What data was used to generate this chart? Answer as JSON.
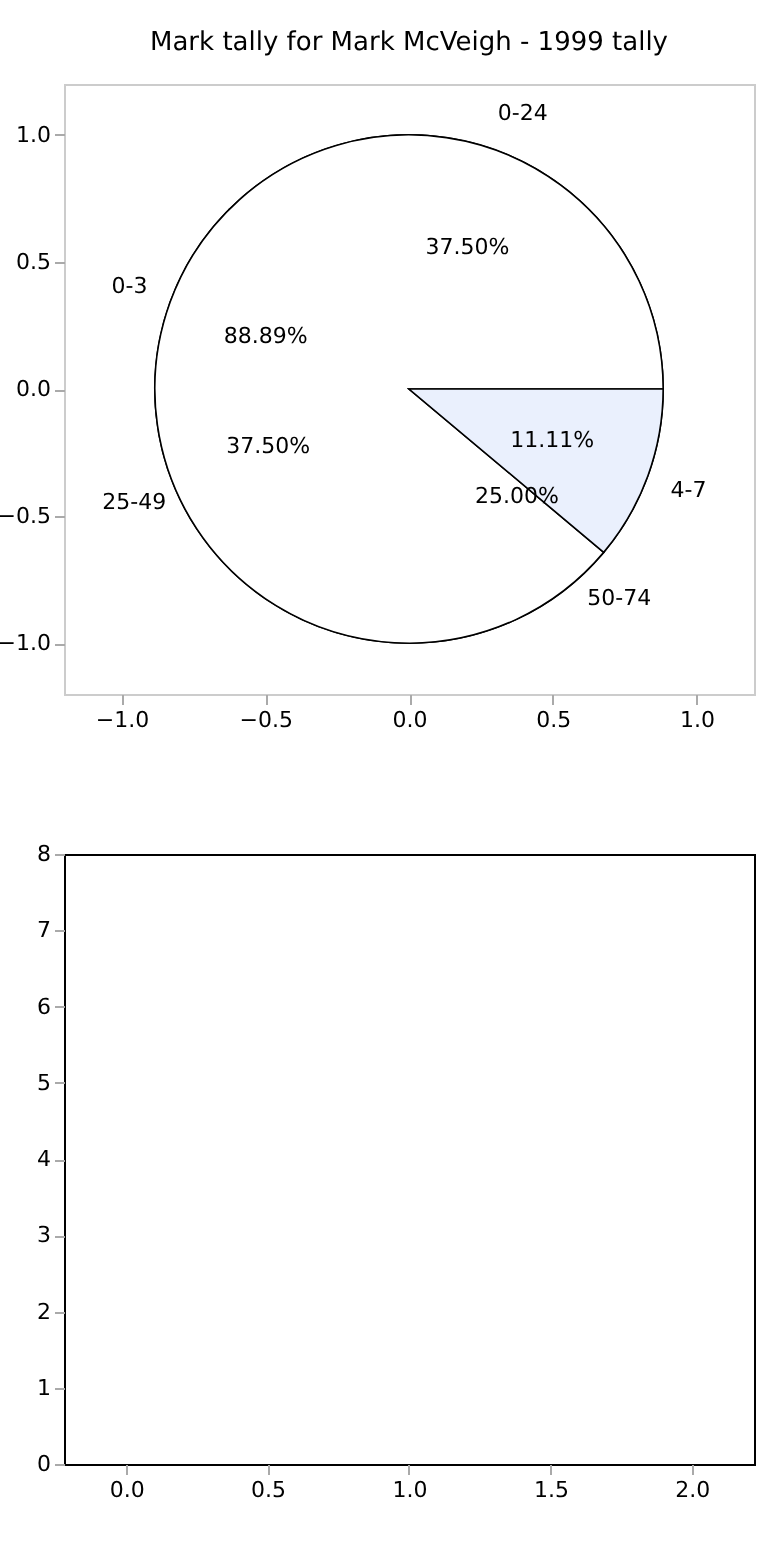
{
  "chart_data": [
    {
      "type": "scatter",
      "title": "Mark tally for Mark McVeigh - 1999 tally",
      "xlim": [
        -1.2,
        1.2
      ],
      "ylim": [
        -1.2,
        1.2
      ],
      "xticks": [
        {
          "value": -1,
          "label": "−1.0"
        },
        {
          "value": -0.5,
          "label": "−0.5"
        },
        {
          "value": 0,
          "label": "0.0"
        },
        {
          "value": 0.5,
          "label": "0.5"
        },
        {
          "value": 1,
          "label": "1.0"
        }
      ],
      "yticks": [
        {
          "value": -1,
          "label": "−1.0"
        },
        {
          "value": -0.5,
          "label": "−0.5"
        },
        {
          "value": 0,
          "label": "0.0"
        },
        {
          "value": 0.5,
          "label": "0.5"
        },
        {
          "value": 1,
          "label": "1.0"
        }
      ],
      "grid": false
    },
    {
      "type": "pie",
      "categories": [
        "0-3",
        "4-7"
      ],
      "values": [
        88.89,
        11.11
      ],
      "colors": [
        "#ffffff",
        "#eaf0fd"
      ],
      "value_labels": [
        "88.89%",
        "11.11%"
      ]
    },
    {
      "type": "pie",
      "categories": [
        "0-24",
        "25-49",
        "50-74"
      ],
      "values": [
        37.5,
        37.5,
        25
      ],
      "colors": [
        "#ffffff",
        "#ffffff",
        "#c6d7f5"
      ],
      "value_labels": [
        "37.50%",
        "37.50%",
        "25.00%"
      ]
    },
    {
      "type": "scatter",
      "xlim": [
        -0.22,
        2.22
      ],
      "ylim": [
        0,
        8
      ],
      "xticks": [
        {
          "value": 0,
          "label": "0.0"
        },
        0.5,
        {
          "value": 1,
          "label": "1.0"
        },
        1.5,
        {
          "value": 2,
          "label": "2.0"
        }
      ],
      "yticks": [
        0,
        1,
        2,
        3,
        4,
        5,
        6,
        7,
        8
      ],
      "grid": false
    }
  ]
}
